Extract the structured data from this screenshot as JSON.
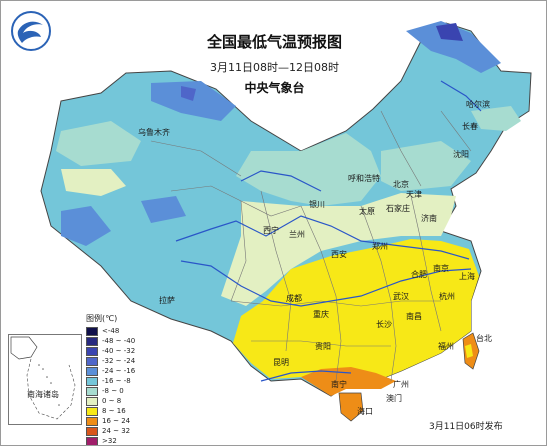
{
  "title": "全国最低气温预报图",
  "subtitle": "3月11日08时—12日08时",
  "agency": "中央气象台",
  "inset_label": "南海诸岛",
  "publish_time": "3月11日06时发布",
  "legend": {
    "title": "图例(℃)",
    "items": [
      {
        "label": "<-48",
        "color": "#10104a"
      },
      {
        "label": "-48 ~ -40",
        "color": "#27297f"
      },
      {
        "label": "-40 ~ -32",
        "color": "#3a44b0"
      },
      {
        "label": "-32 ~ -24",
        "color": "#4f66c9"
      },
      {
        "label": "-24 ~ -16",
        "color": "#5b8fd8"
      },
      {
        "label": "-16 ~ -8",
        "color": "#74c6d9"
      },
      {
        "label": "-8 ~ 0",
        "color": "#a7dcd0"
      },
      {
        "label": "0 ~ 8",
        "color": "#e3f0c2"
      },
      {
        "label": "8 ~ 16",
        "color": "#f7e817"
      },
      {
        "label": "16 ~ 24",
        "color": "#ee8d17"
      },
      {
        "label": "24 ~ 32",
        "color": "#d8561c"
      },
      {
        "label": ">32",
        "color": "#a01e6a"
      }
    ]
  },
  "cities": [
    {
      "name": "乌鲁木齐"
    },
    {
      "name": "哈尔滨"
    },
    {
      "name": "长春"
    },
    {
      "name": "沈阳"
    },
    {
      "name": "呼和浩特"
    },
    {
      "name": "北京"
    },
    {
      "name": "天津"
    },
    {
      "name": "银川"
    },
    {
      "name": "太原"
    },
    {
      "name": "石家庄"
    },
    {
      "name": "济南"
    },
    {
      "name": "西宁"
    },
    {
      "name": "兰州"
    },
    {
      "name": "西安"
    },
    {
      "name": "郑州"
    },
    {
      "name": "合肥"
    },
    {
      "name": "南京"
    },
    {
      "name": "上海"
    },
    {
      "name": "武汉"
    },
    {
      "name": "杭州"
    },
    {
      "name": "成都"
    },
    {
      "name": "重庆"
    },
    {
      "name": "长沙"
    },
    {
      "name": "南昌"
    },
    {
      "name": "拉萨"
    },
    {
      "name": "贵阳"
    },
    {
      "name": "福州"
    },
    {
      "name": "昆明"
    },
    {
      "name": "南宁"
    },
    {
      "name": "广州"
    },
    {
      "name": "澳门"
    },
    {
      "name": "台北"
    },
    {
      "name": "海口"
    }
  ]
}
